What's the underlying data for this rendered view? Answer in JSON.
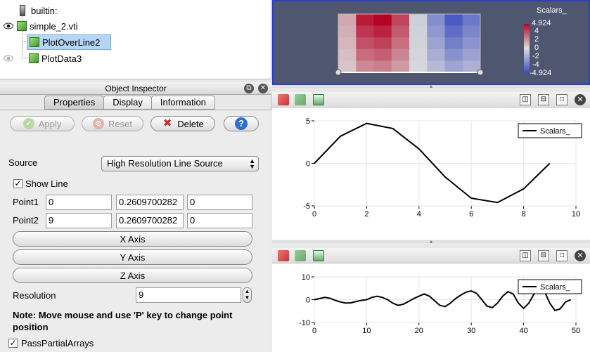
{
  "pipeline": {
    "items": [
      {
        "label": "builtin:"
      },
      {
        "label": "simple_2.vti"
      },
      {
        "label": "PlotOverLine2"
      },
      {
        "label": "PlotData3"
      }
    ]
  },
  "inspector": {
    "title": "Object Inspector",
    "tabs": [
      {
        "label": "Properties"
      },
      {
        "label": "Display"
      },
      {
        "label": "Information"
      }
    ],
    "buttons": {
      "apply": "Apply",
      "reset": "Reset",
      "delete": "Delete",
      "help": "?"
    },
    "source_label": "Source",
    "source_value": "High Resolution Line Source",
    "show_line_label": "Show Line",
    "point1_label": "Point1",
    "point1": [
      "0",
      "0.2609700282",
      "0"
    ],
    "point2_label": "Point2",
    "point2": [
      "9",
      "0.2609700282",
      "0"
    ],
    "x_axis": "X Axis",
    "y_axis": "Y Axis",
    "z_axis": "Z Axis",
    "resolution_label": "Resolution",
    "resolution_value": "9",
    "note": "Note: Move mouse and use 'P' key to change point position",
    "pass_partial_label": "PassPartialArrays"
  },
  "colorbar": {
    "title": "Scalars_",
    "max": "4.924",
    "ticks": [
      "4",
      "2",
      "0",
      "-2",
      "-4"
    ],
    "min": "-4.924"
  },
  "chart_data": [
    {
      "type": "line",
      "series": [
        {
          "name": "Scalars_",
          "x": [
            0,
            1,
            2,
            3,
            4,
            5,
            6,
            7,
            8,
            9
          ],
          "y": [
            0,
            3.2,
            4.7,
            4.1,
            1.7,
            -1.6,
            -4.1,
            -4.6,
            -3.0,
            0
          ]
        }
      ],
      "xticks": [
        "0",
        "2",
        "4",
        "6",
        "8",
        "10"
      ],
      "yticks": [
        "5",
        "0",
        "-5"
      ],
      "xlim": [
        0,
        10
      ],
      "ylim": [
        -5,
        5
      ],
      "legend": "top-right"
    },
    {
      "type": "line",
      "series": [
        {
          "name": "Scalars_",
          "x": [
            0,
            1,
            2,
            3,
            4,
            5,
            6,
            7,
            8,
            9,
            10,
            11,
            12,
            13,
            14,
            15,
            16,
            17,
            18,
            19,
            20,
            21,
            22,
            23,
            24,
            25,
            26,
            27,
            28,
            29,
            30,
            31,
            32,
            33,
            34,
            35,
            36,
            37,
            38,
            39,
            40,
            41,
            42,
            43,
            44,
            45,
            46,
            47,
            48,
            49
          ],
          "y": [
            0,
            0.5,
            1,
            0.6,
            -0.3,
            -1,
            -1.5,
            -1.4,
            -0.8,
            -0.3,
            0,
            1,
            1.5,
            1,
            0,
            -1.5,
            -2.5,
            -2,
            -0.8,
            0.5,
            1.5,
            2.5,
            1.5,
            -0.5,
            -2.5,
            -3,
            -1.5,
            0.5,
            2,
            3.3,
            3.8,
            2.8,
            0,
            -2.8,
            -3.5,
            -1.5,
            1.5,
            3.5,
            2.5,
            -1.5,
            -3.8,
            -1.5,
            2.5,
            4.8,
            3.5,
            -1.5,
            -4.8,
            -4,
            -1,
            0
          ]
        }
      ],
      "xticks": [
        "0",
        "10",
        "20",
        "30",
        "40",
        "50"
      ],
      "yticks": [
        "10",
        "0",
        "-10"
      ],
      "xlim": [
        0,
        50
      ],
      "ylim": [
        -10,
        10
      ],
      "legend": "top-right"
    }
  ]
}
